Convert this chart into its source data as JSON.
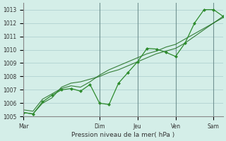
{
  "title": "",
  "xlabel": "Pression niveau de la mer( hPa )",
  "ylabel": "",
  "bg_color": "#d4eee8",
  "grid_color": "#aacccc",
  "line_color": "#1a6b1a",
  "line_color2": "#2d8b2d",
  "ylim": [
    1005,
    1013.5
  ],
  "yticks": [
    1005,
    1006,
    1007,
    1008,
    1009,
    1010,
    1011,
    1012,
    1013
  ],
  "day_labels": [
    "Mar",
    "Dim",
    "Jeu",
    "Ven",
    "Sam"
  ],
  "day_positions": [
    0,
    8,
    12,
    16,
    20
  ],
  "series1_x": [
    0,
    1,
    2,
    3,
    4,
    5,
    6,
    7,
    8,
    9,
    10,
    11,
    12,
    13,
    14,
    15,
    16,
    17,
    18,
    19,
    20,
    21
  ],
  "series1_y": [
    1005.3,
    1005.2,
    1006.1,
    1006.6,
    1007.0,
    1007.1,
    1006.9,
    1007.4,
    1006.0,
    1005.9,
    1007.5,
    1008.3,
    1009.1,
    1010.1,
    1010.05,
    1009.8,
    1009.5,
    1010.5,
    1012.0,
    1013.0,
    1013.0,
    1012.5
  ],
  "series2_x": [
    0,
    1,
    2,
    3,
    4,
    5,
    6,
    7,
    8,
    9,
    10,
    11,
    12,
    13,
    14,
    15,
    16,
    17,
    18,
    19,
    20,
    21
  ],
  "series2_y": [
    1005.3,
    1005.2,
    1006.0,
    1006.4,
    1007.2,
    1007.5,
    1007.6,
    1007.8,
    1008.0,
    1008.3,
    1008.5,
    1008.8,
    1009.1,
    1009.4,
    1009.7,
    1009.9,
    1010.1,
    1010.5,
    1011.0,
    1011.5,
    1012.0,
    1012.5
  ],
  "series3_x": [
    0,
    1,
    2,
    3,
    4,
    5,
    6,
    7,
    8,
    9,
    10,
    11,
    12,
    13,
    14,
    15,
    16,
    17,
    18,
    19,
    20,
    21
  ],
  "series3_y": [
    1005.5,
    1005.4,
    1006.3,
    1006.7,
    1007.1,
    1007.3,
    1007.2,
    1007.6,
    1008.1,
    1008.5,
    1008.8,
    1009.1,
    1009.4,
    1009.7,
    1009.9,
    1010.2,
    1010.4,
    1010.8,
    1011.2,
    1011.6,
    1012.0,
    1012.4
  ],
  "vline_positions": [
    0,
    8,
    12,
    16,
    20
  ],
  "figsize": [
    3.2,
    2.0
  ],
  "dpi": 100
}
